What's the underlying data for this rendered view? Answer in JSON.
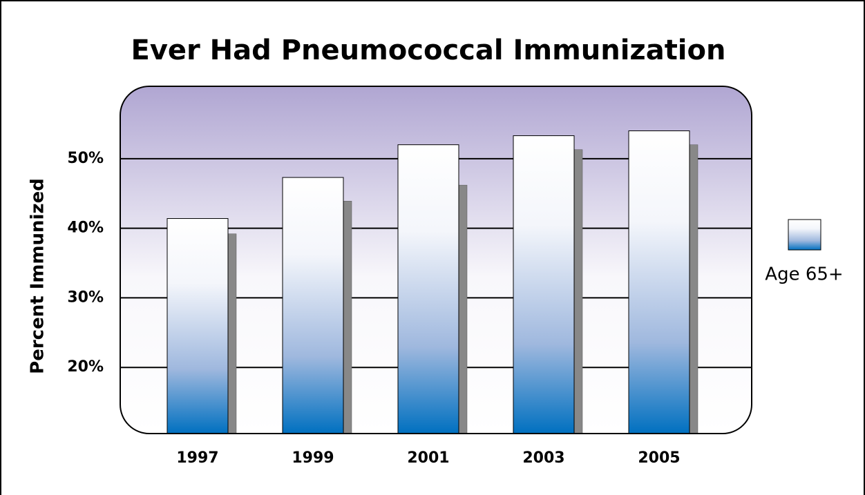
{
  "chart_data": {
    "type": "bar",
    "title": "Ever Had Pneumococcal Immunization",
    "y_label": "Percent Immunized",
    "categories": [
      "1997",
      "1999",
      "2001",
      "2003",
      "2005"
    ],
    "series": [
      {
        "name": "Age 65+",
        "color": "#0070c0",
        "values": [
          41.4,
          47.3,
          52.0,
          53.3,
          54.0
        ]
      },
      {
        "color": "#888888",
        "values": [
          39.2,
          43.9,
          46.2,
          51.3,
          52.0
        ]
      }
    ],
    "ylim": [
      10.5,
      60.4
    ],
    "yticks": [
      {
        "value": 20,
        "label": "20%"
      },
      {
        "value": 30,
        "label": "30%"
      },
      {
        "value": 40,
        "label": "40%"
      },
      {
        "value": 50,
        "label": "50%"
      }
    ],
    "grid": true,
    "legend": "right"
  }
}
